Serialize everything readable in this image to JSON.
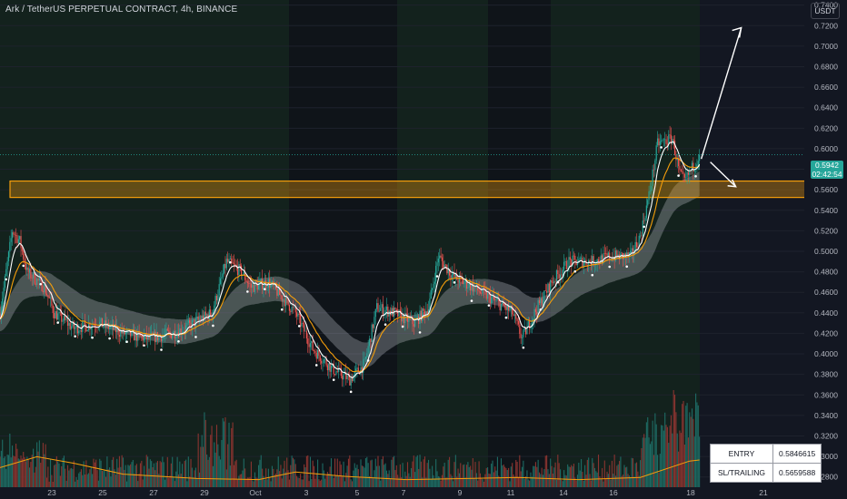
{
  "header": {
    "title": "Ark / TetherUS PERPETUAL CONTRACT, 4h, BINANCE",
    "unit": "USDT"
  },
  "price_tag": {
    "price": "0.5942",
    "countdown": "02:42:54"
  },
  "info_table": [
    {
      "label": "ENTRY",
      "value": "0.5846615"
    },
    {
      "label": "SL/TRAILING",
      "value": "0.5659588"
    }
  ],
  "colors": {
    "background": "#131722",
    "bull": "#26a69a",
    "bear": "#ef5350",
    "zone": "#f59e0b",
    "session_shade": "#14251c"
  },
  "chart_data": {
    "type": "candlestick",
    "y_axis": {
      "range": [
        0.27,
        0.745
      ],
      "ticks": [
        0.28,
        0.3,
        0.32,
        0.34,
        0.36,
        0.38,
        0.4,
        0.42,
        0.44,
        0.46,
        0.48,
        0.5,
        0.52,
        0.54,
        0.56,
        0.58,
        0.6,
        0.62,
        0.64,
        0.66,
        0.68,
        0.7,
        0.72,
        0.74
      ]
    },
    "x_axis": {
      "tick_labels": [
        "23",
        "25",
        "27",
        "29",
        "Oct",
        "3",
        "5",
        "7",
        "9",
        "11",
        "14",
        "16",
        "18",
        "21"
      ]
    },
    "support_zone": {
      "low": 0.5525,
      "high": 0.5685
    },
    "current_price": 0.5942,
    "arrows": [
      {
        "from": 0.59,
        "to": 0.718
      },
      {
        "from": 0.587,
        "to": 0.563
      }
    ],
    "price_path": [
      [
        0,
        0.44
      ],
      [
        10,
        0.52
      ],
      [
        16,
        0.51
      ],
      [
        22,
        0.48
      ],
      [
        36,
        0.465
      ],
      [
        44,
        0.44
      ],
      [
        60,
        0.425
      ],
      [
        80,
        0.43
      ],
      [
        100,
        0.42
      ],
      [
        120,
        0.415
      ],
      [
        140,
        0.42
      ],
      [
        150,
        0.425
      ],
      [
        172,
        0.44
      ],
      [
        184,
        0.49
      ],
      [
        196,
        0.48
      ],
      [
        204,
        0.465
      ],
      [
        218,
        0.47
      ],
      [
        240,
        0.44
      ],
      [
        254,
        0.405
      ],
      [
        270,
        0.385
      ],
      [
        284,
        0.375
      ],
      [
        296,
        0.39
      ],
      [
        306,
        0.445
      ],
      [
        320,
        0.44
      ],
      [
        336,
        0.43
      ],
      [
        348,
        0.445
      ],
      [
        356,
        0.495
      ],
      [
        368,
        0.475
      ],
      [
        384,
        0.465
      ],
      [
        404,
        0.45
      ],
      [
        416,
        0.44
      ],
      [
        424,
        0.415
      ],
      [
        434,
        0.44
      ],
      [
        448,
        0.47
      ],
      [
        462,
        0.49
      ],
      [
        480,
        0.49
      ],
      [
        496,
        0.495
      ],
      [
        512,
        0.495
      ],
      [
        520,
        0.515
      ],
      [
        528,
        0.56
      ],
      [
        534,
        0.605
      ],
      [
        546,
        0.61
      ],
      [
        552,
        0.575
      ],
      [
        556,
        0.568
      ],
      [
        564,
        0.585
      ],
      [
        568,
        0.594
      ]
    ],
    "volume": {
      "moving_average": [
        [
          0,
          0.18
        ],
        [
          30,
          0.28
        ],
        [
          60,
          0.22
        ],
        [
          100,
          0.12
        ],
        [
          160,
          0.08
        ],
        [
          210,
          0.07
        ],
        [
          240,
          0.14
        ],
        [
          280,
          0.1
        ],
        [
          330,
          0.07
        ],
        [
          380,
          0.08
        ],
        [
          420,
          0.09
        ],
        [
          470,
          0.07
        ],
        [
          520,
          0.09
        ],
        [
          560,
          0.24
        ],
        [
          568,
          0.25
        ]
      ]
    }
  }
}
